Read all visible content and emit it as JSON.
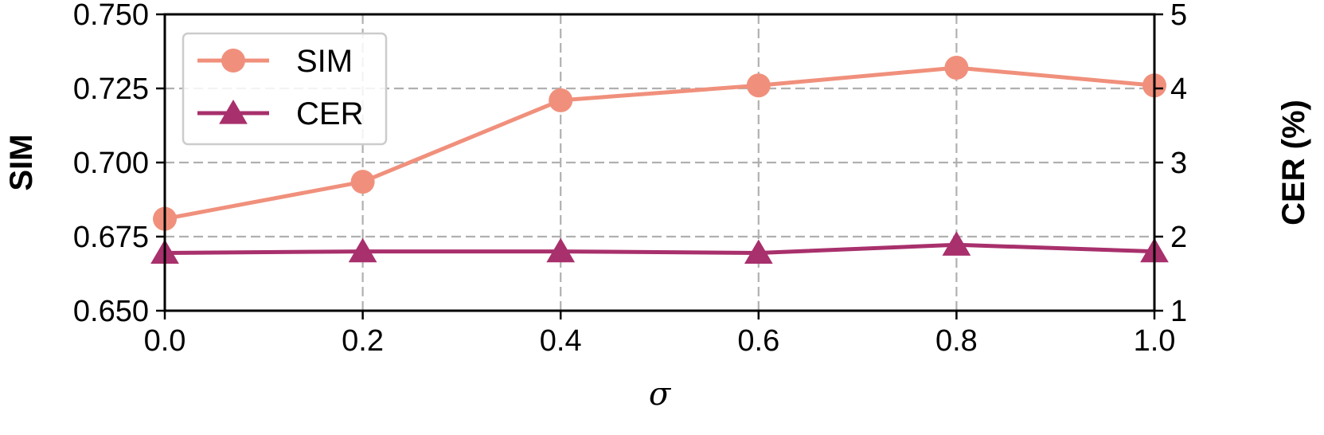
{
  "chart_data": {
    "type": "line",
    "xlabel": "σ",
    "x": [
      0.0,
      0.2,
      0.4,
      0.6,
      0.8,
      1.0
    ],
    "x_ticks": [
      "0.0",
      "0.2",
      "0.4",
      "0.6",
      "0.8",
      "1.0"
    ],
    "xlim": [
      0.0,
      1.0
    ],
    "left_axis": {
      "label": "SIM",
      "ylim": [
        0.65,
        0.75
      ],
      "ticks": [
        "0.650",
        "0.675",
        "0.700",
        "0.725",
        "0.750"
      ]
    },
    "right_axis": {
      "label": "CER (%)",
      "ylim": [
        1,
        5
      ],
      "ticks": [
        "1",
        "2",
        "3",
        "4",
        "5"
      ]
    },
    "series": [
      {
        "name": "SIM",
        "axis": "left",
        "marker": "circle",
        "color": "#F0907C",
        "values": [
          0.681,
          0.6935,
          0.721,
          0.726,
          0.732,
          0.726
        ]
      },
      {
        "name": "CER",
        "axis": "right",
        "marker": "triangle",
        "color": "#A8306C",
        "values": [
          1.78,
          1.8,
          1.8,
          1.78,
          1.89,
          1.8
        ]
      }
    ],
    "grid": true,
    "legend_position": "top-left"
  }
}
